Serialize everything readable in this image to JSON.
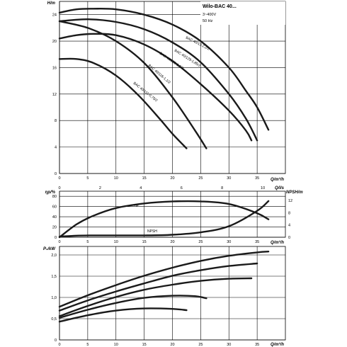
{
  "chart_data": [
    {
      "type": "line",
      "title": "Wilo-BAC 40...",
      "info": [
        "3~400V",
        "50 Hz"
      ],
      "ylabel": "H/m",
      "xlabel": "Q/m³/h",
      "xlabel2": "Q/l/s",
      "xlim": [
        0,
        40
      ],
      "ylim": [
        0,
        26
      ],
      "xticks": [
        "0",
        "5",
        "10",
        "15",
        "20",
        "25",
        "30",
        "35"
      ],
      "yticks": [
        "0",
        "4",
        "8",
        "12",
        "16",
        "20",
        "24"
      ],
      "x2ticks": [
        "0",
        "2",
        "4",
        "6",
        "8",
        "10"
      ],
      "grid": true,
      "series": [
        {
          "name": "BAC 40/13-2,2/2",
          "x": [
            0,
            3,
            6,
            10,
            15,
            20,
            25,
            30,
            33,
            35,
            37
          ],
          "y": [
            24.3,
            24.8,
            24.9,
            24.8,
            24.0,
            22.5,
            20.0,
            16.0,
            12.5,
            10.0,
            6.6
          ]
        },
        {
          "name": "BAC 40/129-1,85/2",
          "x": [
            0,
            5,
            10,
            15,
            20,
            25,
            30,
            33,
            35
          ],
          "y": [
            23.0,
            23.3,
            22.9,
            21.8,
            19.8,
            16.8,
            12.0,
            8.3,
            5.0
          ]
        },
        {
          "name": "BAC 40/126-1,5/2",
          "x": [
            0,
            3,
            6,
            10,
            15,
            20,
            25,
            30,
            33,
            34
          ],
          "y": [
            20.4,
            20.9,
            21.1,
            20.9,
            19.5,
            17.0,
            13.5,
            9.5,
            6.5,
            5.0
          ]
        },
        {
          "name": "BAC 40/116-1,1/2",
          "x": [
            0,
            5,
            10,
            15,
            20,
            24,
            26
          ],
          "y": [
            23.0,
            22.0,
            20.0,
            16.7,
            11.5,
            6.5,
            3.8
          ]
        },
        {
          "name": "BAC 40/111-0,75/2",
          "x": [
            0,
            3,
            6,
            10,
            14,
            18,
            20,
            22.5
          ],
          "y": [
            17.3,
            17.3,
            16.7,
            14.8,
            11.8,
            8.0,
            6.0,
            3.8
          ]
        }
      ]
    },
    {
      "type": "line",
      "ylabel": "ηp/%",
      "ylabel2": "NPSH/m",
      "xlabel": "Q/m³/h",
      "xlim": [
        0,
        40
      ],
      "ylim": [
        0,
        90
      ],
      "ylim2": [
        0,
        15
      ],
      "xticks": [
        "0",
        "5",
        "10",
        "15",
        "20",
        "25",
        "30",
        "35"
      ],
      "yticks": [
        "0",
        "20",
        "40",
        "60",
        "80"
      ],
      "yticks2": [
        "0",
        "4",
        "8",
        "12"
      ],
      "series": [
        {
          "name": "ηp",
          "axis": "left",
          "x": [
            0,
            3,
            6,
            10,
            15,
            20,
            25,
            30,
            35,
            37
          ],
          "y": [
            0,
            25,
            42,
            57,
            66,
            70,
            70,
            65,
            47,
            35
          ]
        },
        {
          "name": "NPSH",
          "axis": "right",
          "x": [
            0,
            3,
            6,
            10,
            15,
            20,
            25,
            30,
            35,
            37
          ],
          "y": [
            0.2,
            0.5,
            0.6,
            0.6,
            0.6,
            0.8,
            1.6,
            3.6,
            8.6,
            11.8
          ]
        }
      ]
    },
    {
      "type": "line",
      "ylabel": "P₂/kW",
      "xlabel": "Q/m³/h",
      "xlim": [
        0,
        40
      ],
      "ylim": [
        0,
        2.2
      ],
      "xticks": [
        "0",
        "5",
        "10",
        "15",
        "20",
        "25",
        "30",
        "35"
      ],
      "yticks": [
        "0",
        "0,5",
        "1,0",
        "1,5",
        "2,0"
      ],
      "series": [
        {
          "name": "BAC 40/13-2,2/2",
          "x": [
            0,
            5,
            10,
            15,
            20,
            25,
            30,
            35,
            37
          ],
          "y": [
            0.78,
            1.05,
            1.29,
            1.51,
            1.7,
            1.86,
            1.98,
            2.06,
            2.08
          ]
        },
        {
          "name": "BAC 40/129-1,85/2",
          "x": [
            0,
            5,
            10,
            15,
            20,
            25,
            30,
            35
          ],
          "y": [
            0.69,
            0.93,
            1.14,
            1.33,
            1.51,
            1.64,
            1.74,
            1.8
          ]
        },
        {
          "name": "BAC 40/126-1,5/2",
          "x": [
            0,
            5,
            10,
            15,
            20,
            25,
            30,
            34
          ],
          "y": [
            0.56,
            0.8,
            1.01,
            1.18,
            1.3,
            1.39,
            1.44,
            1.45
          ]
        },
        {
          "name": "BAC 40/116-1,1/2",
          "x": [
            0,
            5,
            10,
            15,
            20,
            24,
            26
          ],
          "y": [
            0.52,
            0.71,
            0.87,
            0.99,
            1.04,
            1.03,
            0.98
          ]
        },
        {
          "name": "BAC 40/111-0,75/2",
          "x": [
            0,
            5,
            10,
            15,
            20,
            22.5
          ],
          "y": [
            0.43,
            0.58,
            0.69,
            0.74,
            0.73,
            0.7
          ]
        }
      ]
    }
  ]
}
